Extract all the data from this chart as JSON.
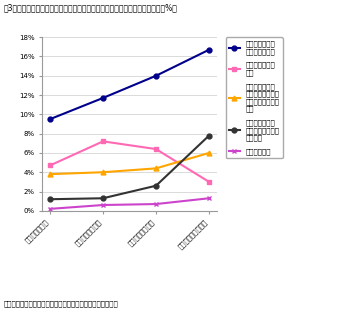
{
  "title": "図3　事業目的別の共同研究のパートナー（外部からの共同発明者）の頻度（%）",
  "note": "注　企業に所属する発明者の発明にかかる研究開発に限定。",
  "x_labels": [
    "コア事業が対象",
    "非コア事業が対象",
    "新規事業立ち上げ",
    "企業の技術基盤強化"
  ],
  "series": [
    {
      "name": "外部共同発明者\nが存在する割合",
      "values": [
        9.5,
        11.7,
        14.0,
        16.7
      ],
      "color": "#00008B",
      "marker": "o",
      "linewidth": 1.5
    },
    {
      "name": "顧客・製品ユー\nザー",
      "values": [
        4.7,
        7.2,
        6.4,
        3.0
      ],
      "color": "#FF69B4",
      "marker": "s",
      "linewidth": 1.5
    },
    {
      "name": "設備、材料、部\n品、ソフトウエア\n等のサプライヤー\n企業",
      "values": [
        3.8,
        4.0,
        4.4,
        6.0
      ],
      "color": "#FFA500",
      "marker": "^",
      "linewidth": 1.5
    },
    {
      "name": "大学等高等教育\n機関（付属研究所\nを含む）",
      "values": [
        1.2,
        1.3,
        2.6,
        7.8
      ],
      "color": "#333333",
      "marker": "o",
      "linewidth": 1.5
    },
    {
      "name": "国立研究機関",
      "values": [
        0.2,
        0.6,
        0.7,
        1.3
      ],
      "color": "#CC44CC",
      "marker": "x",
      "linewidth": 1.5
    }
  ],
  "ylim": [
    0,
    18
  ],
  "yticks": [
    0,
    2,
    4,
    6,
    8,
    10,
    12,
    14,
    16,
    18
  ],
  "ytick_labels": [
    "0%",
    "2%",
    "4%",
    "6%",
    "8%",
    "10%",
    "12%",
    "14%",
    "16%",
    "18%"
  ],
  "figsize": [
    3.5,
    3.1
  ],
  "dpi": 100,
  "bg_color": "#ffffff",
  "plot_bg_color": "#ffffff",
  "grid_color": "#cccccc",
  "title_fontsize": 5.5,
  "legend_fontsize": 5.0,
  "tick_fontsize": 5.0,
  "note_fontsize": 5.0
}
